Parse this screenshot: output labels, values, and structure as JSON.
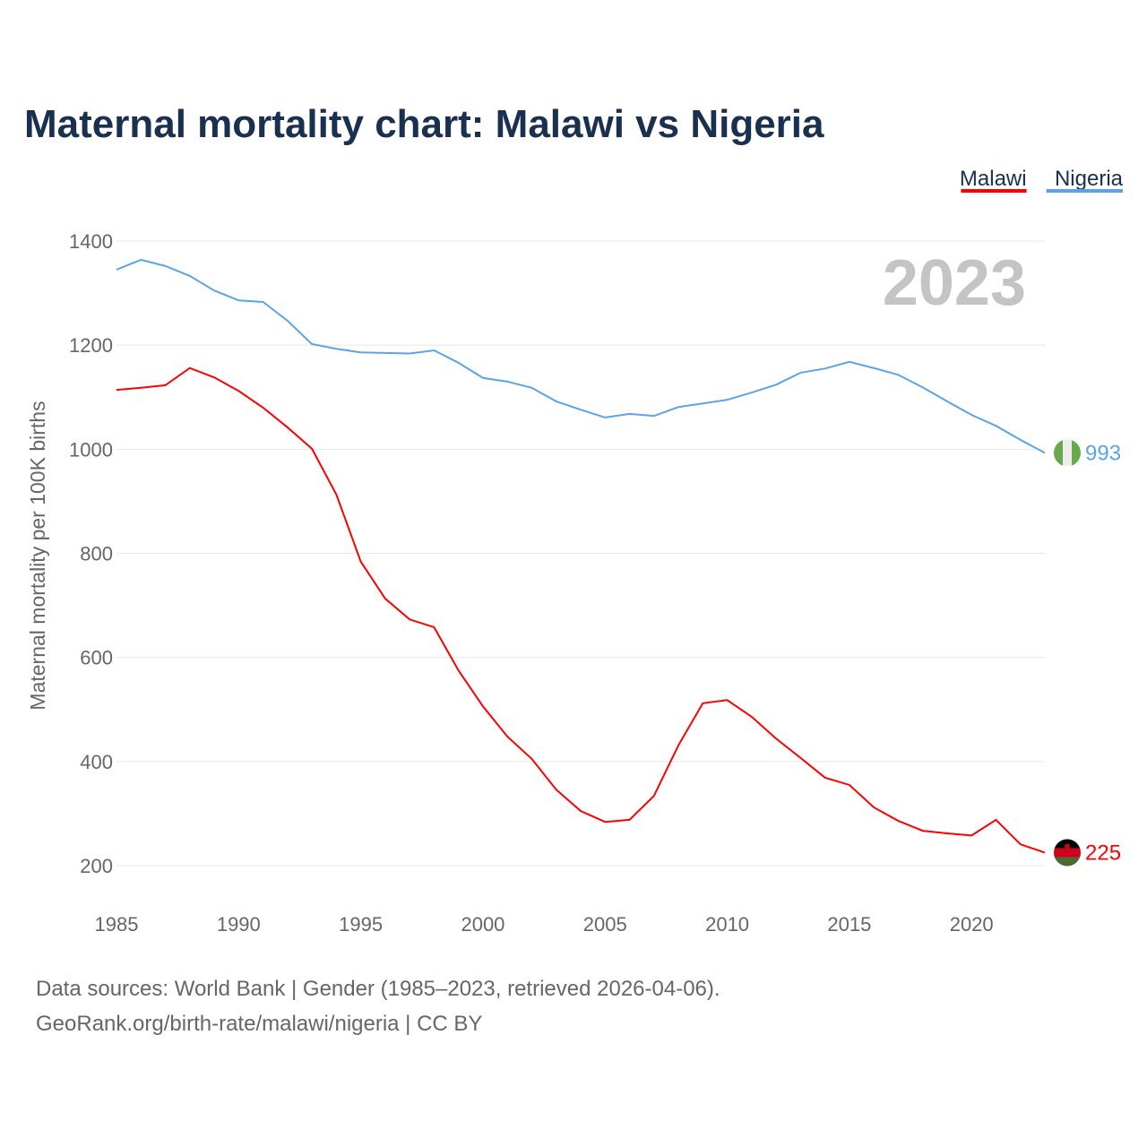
{
  "chart_data": {
    "type": "line",
    "title": "Maternal mortality chart: Malawi vs Nigeria",
    "xlabel": "",
    "ylabel": "Maternal mortality per 100K births",
    "xlim": [
      1985,
      2023
    ],
    "ylim": [
      200,
      1400
    ],
    "x_ticks": [
      1985,
      1990,
      1995,
      2000,
      2005,
      2010,
      2015,
      2020
    ],
    "y_ticks": [
      200,
      400,
      600,
      800,
      1000,
      1200,
      1400
    ],
    "grid": true,
    "legend_placement": "top-right",
    "year_label": "2023",
    "x": [
      1985,
      1986,
      1987,
      1988,
      1989,
      1990,
      1991,
      1992,
      1993,
      1994,
      1995,
      1996,
      1997,
      1998,
      1999,
      2000,
      2001,
      2002,
      2003,
      2004,
      2005,
      2006,
      2007,
      2008,
      2009,
      2010,
      2011,
      2012,
      2013,
      2014,
      2015,
      2016,
      2017,
      2018,
      2019,
      2020,
      2021,
      2022,
      2023
    ],
    "series": [
      {
        "name": "Malawi",
        "color": "#ff0000",
        "end_label": "225",
        "flag": "malawi-flag",
        "values": [
          1114,
          1118,
          1123,
          1156,
          1138,
          1112,
          1080,
          1042,
          1001,
          913,
          784,
          713,
          673,
          658,
          575,
          506,
          448,
          405,
          346,
          305,
          284,
          288,
          334,
          431,
          512,
          518,
          486,
          444,
          407,
          369,
          355,
          312,
          286,
          267,
          262,
          258,
          288,
          241,
          225
        ]
      },
      {
        "name": "Nigeria",
        "color": "#5ba4e8",
        "end_label": "993",
        "flag": "nigeria-flag",
        "values": [
          1345,
          1364,
          1352,
          1333,
          1305,
          1286,
          1283,
          1247,
          1202,
          1193,
          1186,
          1185,
          1184,
          1190,
          1166,
          1137,
          1130,
          1118,
          1092,
          1076,
          1061,
          1068,
          1064,
          1081,
          1088,
          1095,
          1109,
          1124,
          1147,
          1155,
          1168,
          1156,
          1143,
          1119,
          1092,
          1066,
          1045,
          1018,
          993
        ]
      }
    ]
  },
  "footer": {
    "line1": "Data sources: World Bank | Gender (1985–2023, retrieved 2026-04-06).",
    "line2": "GeoRank.org/birth-rate/malawi/nigeria | CC BY"
  }
}
